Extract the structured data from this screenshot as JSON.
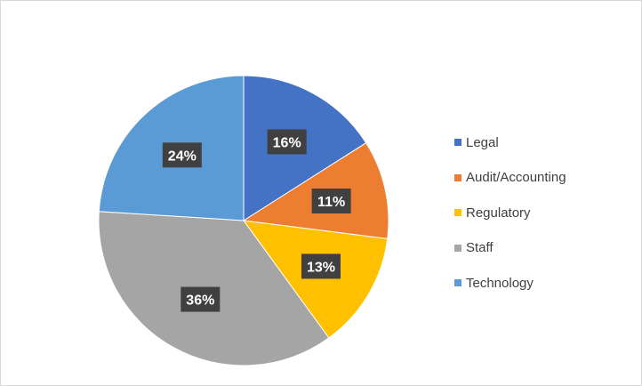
{
  "chart_data": {
    "type": "pie",
    "categories": [
      "Legal",
      "Audit/Accounting",
      "Regulatory",
      "Staff",
      "Technology"
    ],
    "values": [
      16,
      11,
      13,
      36,
      24
    ],
    "data_labels": [
      "16%",
      "11%",
      "13%",
      "36%",
      "24%"
    ],
    "colors": [
      "#4472C4",
      "#ED7D31",
      "#FFC000",
      "#A5A5A5",
      "#5B9BD5"
    ],
    "legend_position": "right",
    "start_angle_deg": 0,
    "direction": "clockwise"
  }
}
